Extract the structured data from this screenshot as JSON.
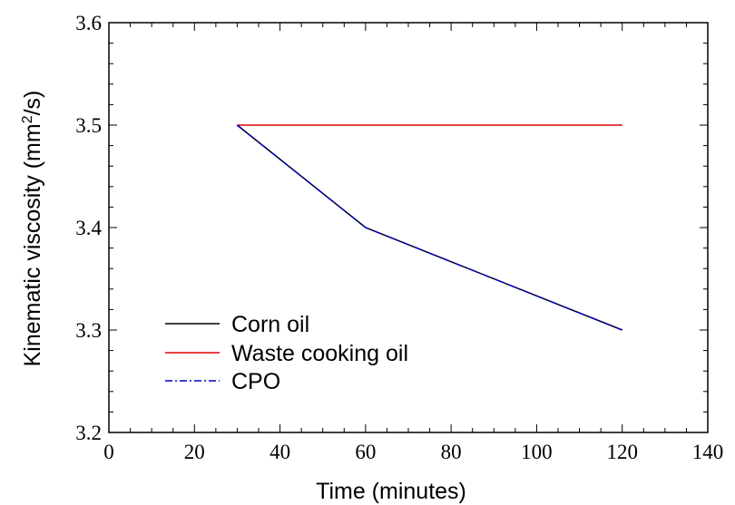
{
  "chart_data": {
    "type": "line",
    "title": "",
    "xlabel": "Time (minutes)",
    "ylabel_main": "Kinematic viscosity (mm",
    "ylabel_sup": "2",
    "ylabel_tail": "/s)",
    "xlim": [
      0,
      140
    ],
    "ylim": [
      3.2,
      3.6
    ],
    "x_ticks": [
      0,
      20,
      40,
      60,
      80,
      100,
      120,
      140
    ],
    "y_ticks": [
      3.2,
      3.3,
      3.4,
      3.5,
      3.6
    ],
    "x_tick_labels": [
      "0",
      "20",
      "40",
      "60",
      "80",
      "100",
      "120",
      "140"
    ],
    "y_tick_labels": [
      "3.2",
      "3.3",
      "3.4",
      "3.5",
      "3.6"
    ],
    "grid": false,
    "legend_position": "bottom-left",
    "series": [
      {
        "name": "Corn oil",
        "color": "#000000",
        "dash": "solid",
        "x": [
          30,
          60,
          120
        ],
        "y": [
          3.5,
          3.4,
          3.3
        ]
      },
      {
        "name": "Waste cooking oil",
        "color": "#e00000",
        "dash": "solid",
        "x": [
          30,
          60,
          120
        ],
        "y": [
          3.5,
          3.5,
          3.5
        ]
      },
      {
        "name": "CPO",
        "color": "#0000cc",
        "dash": "dashdot",
        "x": [
          30,
          60,
          120
        ],
        "y": [
          3.5,
          3.4,
          3.3
        ]
      }
    ]
  }
}
